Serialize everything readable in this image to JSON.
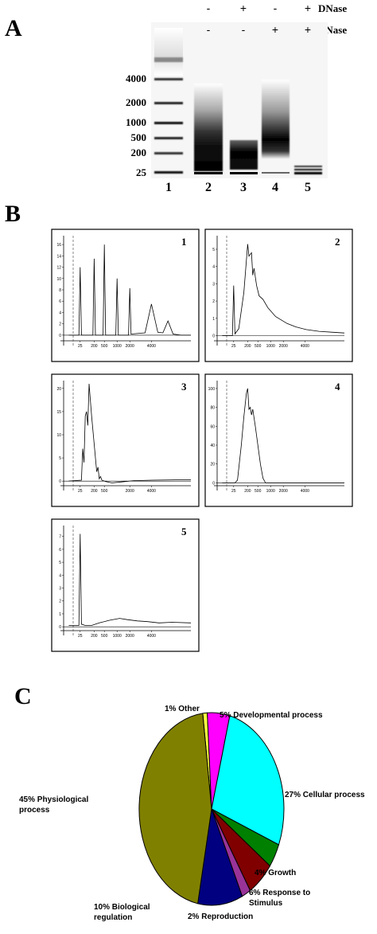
{
  "panel_a": {
    "label": "A",
    "row_labels": [
      "DNase",
      "RNase"
    ],
    "dnase": [
      "-",
      "+",
      "-",
      "+"
    ],
    "rnase": [
      "-",
      "-",
      "+",
      "+"
    ],
    "ladder_labels": [
      "4000",
      "2000",
      "1000",
      "500",
      "200",
      "25"
    ],
    "lanes": [
      "1",
      "2",
      "3",
      "4",
      "5"
    ]
  },
  "panel_b": {
    "label": "B",
    "plots": [
      {
        "label": "1",
        "type": "line",
        "xlim": [
          0,
          100
        ],
        "ylim": [
          -1,
          17
        ],
        "yticks": [
          0,
          2,
          4,
          6,
          8,
          10,
          12,
          14,
          16
        ],
        "xticks": [
          {
            "value": 13,
            "label": "25"
          },
          {
            "value": 24,
            "label": "200"
          },
          {
            "value": 32,
            "label": "500"
          },
          {
            "value": 42,
            "label": "1000"
          },
          {
            "value": 52,
            "label": "2000"
          },
          {
            "value": 69,
            "label": "4000"
          }
        ],
        "x": [
          4,
          12,
          13,
          14,
          23,
          24,
          25,
          31,
          32,
          33,
          41,
          42,
          43,
          51,
          52,
          53,
          64,
          69,
          74,
          78,
          82,
          86,
          92,
          100
        ],
        "y": [
          0,
          0,
          12,
          0,
          0,
          13.5,
          0,
          0,
          16,
          0,
          0,
          10,
          0,
          0,
          8.3,
          0.2,
          0.4,
          5.5,
          0.5,
          0.4,
          2.5,
          0.2,
          0,
          0
        ]
      },
      {
        "label": "2",
        "type": "line",
        "xlim": [
          0,
          100
        ],
        "ylim": [
          -0.3,
          5.6
        ],
        "yticks": [
          0,
          1,
          2,
          3,
          4,
          5
        ],
        "xticks": [
          {
            "value": 13,
            "label": "25"
          },
          {
            "value": 24,
            "label": "200"
          },
          {
            "value": 32,
            "label": "500"
          },
          {
            "value": 42,
            "label": "1000"
          },
          {
            "value": 52,
            "label": "2000"
          },
          {
            "value": 69,
            "label": "4000"
          }
        ],
        "x": [
          4,
          12,
          13,
          14,
          17,
          21,
          24,
          25,
          27,
          28,
          29,
          31,
          33,
          36,
          40,
          46,
          55,
          62,
          70,
          80,
          90,
          100
        ],
        "y": [
          0,
          0,
          2.9,
          0.1,
          0.4,
          2.5,
          5.3,
          4.6,
          4.8,
          3.5,
          3.9,
          2.9,
          2.3,
          2.1,
          1.6,
          1.1,
          0.7,
          0.5,
          0.35,
          0.25,
          0.2,
          0.15
        ]
      },
      {
        "label": "3",
        "type": "line",
        "xlim": [
          0,
          100
        ],
        "ylim": [
          -1,
          21
        ],
        "yticks": [
          0,
          5,
          10,
          15,
          20
        ],
        "xticks": [
          {
            "value": 13,
            "label": "25"
          },
          {
            "value": 24,
            "label": "200"
          },
          {
            "value": 32,
            "label": "500"
          },
          {
            "value": 52,
            "label": "2000"
          },
          {
            "value": 69,
            "label": "4000"
          }
        ],
        "x": [
          4,
          14,
          15,
          16,
          17,
          18,
          19,
          20,
          22,
          24,
          26,
          27,
          28,
          29,
          30,
          33,
          38,
          45,
          55,
          70,
          100
        ],
        "y": [
          0,
          0.2,
          7,
          4,
          14,
          15,
          12,
          21,
          14,
          8,
          2,
          3,
          0.5,
          1,
          0.2,
          -0.1,
          -0.4,
          -0.2,
          0.1,
          0.2,
          0.3
        ]
      },
      {
        "label": "4",
        "type": "line",
        "xlim": [
          0,
          100
        ],
        "ylim": [
          -3,
          105
        ],
        "yticks": [
          0,
          20,
          40,
          60,
          80,
          100
        ],
        "xticks": [
          {
            "value": 13,
            "label": "25"
          },
          {
            "value": 24,
            "label": "200"
          },
          {
            "value": 32,
            "label": "500"
          },
          {
            "value": 42,
            "label": "1000"
          },
          {
            "value": 52,
            "label": "2000"
          },
          {
            "value": 69,
            "label": "4000"
          }
        ],
        "x": [
          4,
          14,
          16,
          19,
          21,
          23,
          24,
          25,
          26,
          27,
          28,
          30,
          32,
          34,
          36,
          38,
          100
        ],
        "y": [
          0,
          0,
          3,
          40,
          70,
          95,
          100,
          78,
          80,
          72,
          78,
          60,
          40,
          20,
          5,
          0,
          0
        ]
      },
      {
        "label": "5",
        "type": "line",
        "xlim": [
          0,
          100
        ],
        "ylim": [
          -0.3,
          7.6
        ],
        "yticks": [
          0,
          1,
          2,
          3,
          4,
          5,
          6,
          7
        ],
        "xticks": [
          {
            "value": 13,
            "label": "25"
          },
          {
            "value": 24,
            "label": "200"
          },
          {
            "value": 32,
            "label": "500"
          },
          {
            "value": 42,
            "label": "1000"
          },
          {
            "value": 52,
            "label": "2000"
          },
          {
            "value": 69,
            "label": "4000"
          }
        ],
        "x": [
          4,
          12,
          13,
          14,
          17,
          22,
          28,
          36,
          44,
          50,
          58,
          66,
          75,
          85,
          100
        ],
        "y": [
          0.1,
          0.1,
          7.2,
          0.2,
          0.1,
          0.1,
          0.3,
          0.5,
          0.65,
          0.55,
          0.45,
          0.4,
          0.3,
          0.35,
          0.3
        ]
      }
    ]
  },
  "panel_c": {
    "label": "C",
    "type": "pie",
    "categories": [
      "Other",
      "Developmental process",
      "Cellular process",
      "Growth",
      "Response to Stimulus",
      "Reproduction",
      "Biological regulation",
      "Physiological process"
    ],
    "values": [
      1,
      5,
      27,
      4,
      6,
      2,
      10,
      45
    ],
    "value_labels": [
      "1%",
      "5%",
      "27%",
      "4%",
      "6%",
      "2%",
      "10%",
      "45%"
    ],
    "colors": [
      "#ffff40",
      "#ff00ff",
      "#00ffff",
      "#008000",
      "#800000",
      "#993399",
      "#000080",
      "#808000"
    ]
  }
}
